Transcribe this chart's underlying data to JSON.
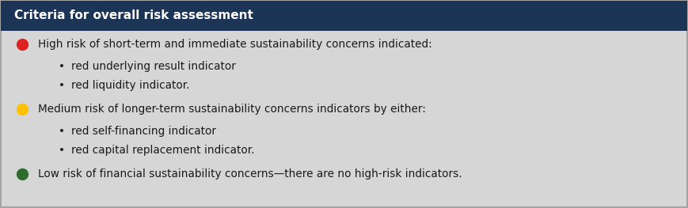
{
  "title": "Criteria for overall risk assessment",
  "title_bg_color": "#1C3557",
  "title_text_color": "#FFFFFF",
  "body_bg_color": "#D6D6D6",
  "border_color": "#999999",
  "text_color": "#1A1A1A",
  "font_size": 9.8,
  "title_font_size": 11.0,
  "figsize": [
    8.69,
    2.63
  ],
  "dpi": 100,
  "items": [
    {
      "dot_color": "#DD2222",
      "main_text": "High risk of short-term and immediate sustainability concerns indicated:",
      "sub_items": [
        "red underlying result indicator",
        "red liquidity indicator."
      ]
    },
    {
      "dot_color": "#FFC000",
      "main_text": "Medium risk of longer-term sustainability concerns indicators by either:",
      "sub_items": [
        "red self-financing indicator",
        "red capital replacement indicator."
      ]
    },
    {
      "dot_color": "#2E6B2E",
      "main_text": "Low risk of financial sustainability concerns—there are no high-risk indicators.",
      "sub_items": []
    }
  ]
}
